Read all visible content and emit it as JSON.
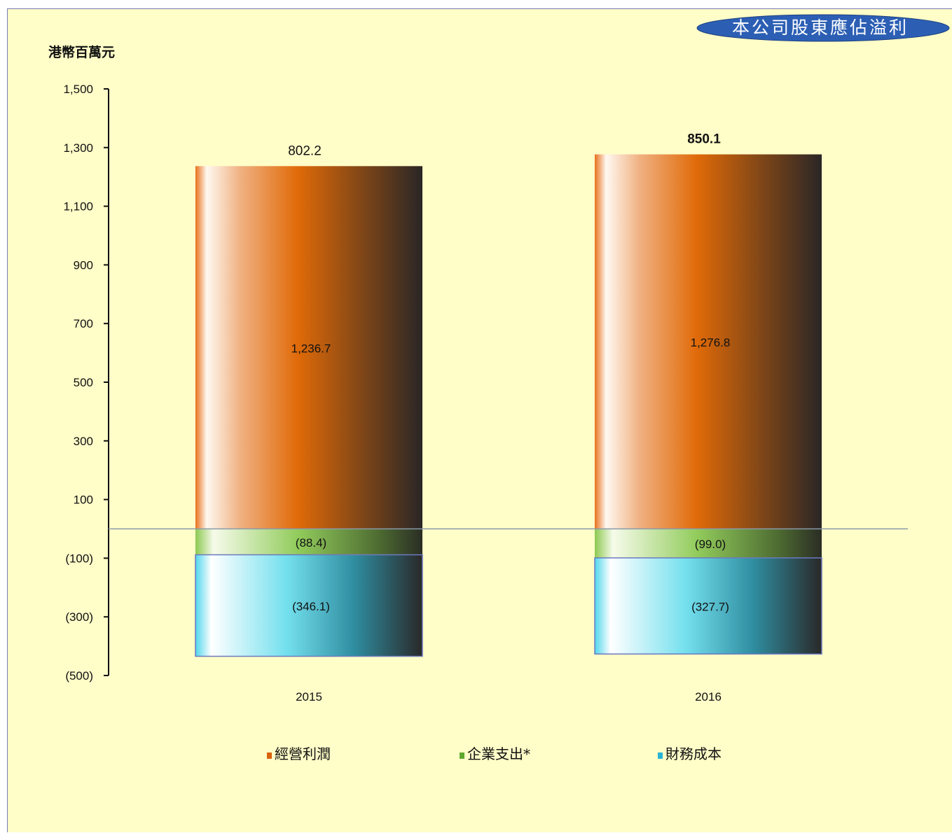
{
  "chart_data": {
    "type": "bar",
    "stacked": true,
    "title": "本公司股東應佔溢利",
    "ylabel": "港幣百萬元",
    "xlabel": "",
    "categories": [
      "2015",
      "2016"
    ],
    "ylim": [
      -500,
      1500
    ],
    "yticks": [
      1500,
      1300,
      1100,
      900,
      700,
      500,
      300,
      100,
      -100,
      -300,
      -500
    ],
    "ytick_labels": [
      "1,500",
      "1,300",
      "1,100",
      "900",
      "700",
      "500",
      "300",
      "100",
      "(100)",
      "(300)",
      "(500)"
    ],
    "series": [
      {
        "name": "經營利潤",
        "values": [
          1236.7,
          1276.8
        ],
        "labels": [
          "1,236.7",
          "1,276.8"
        ],
        "color": "#e06a10"
      },
      {
        "name": "企業支出*",
        "values": [
          -88.4,
          -99.0
        ],
        "labels": [
          "(88.4)",
          "(99.0)"
        ],
        "color": "#6db33a"
      },
      {
        "name": "財務成本",
        "values": [
          -346.1,
          -327.7
        ],
        "labels": [
          "(346.1)",
          "(327.7)"
        ],
        "color": "#2fc3dc"
      }
    ],
    "totals": [
      "802.2",
      "850.1"
    ],
    "legend_position": "bottom",
    "grid": false
  }
}
